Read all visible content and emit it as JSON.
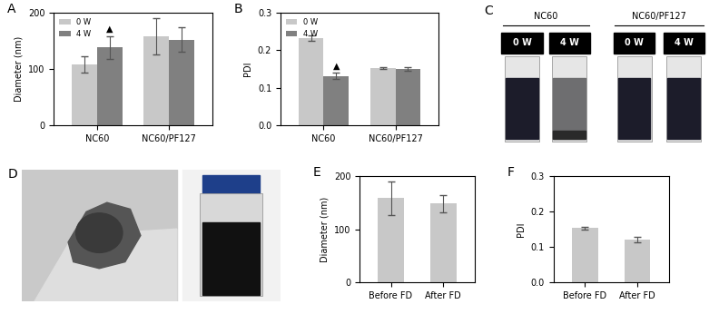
{
  "panel_labels": [
    "A",
    "B",
    "C",
    "D",
    "E",
    "F"
  ],
  "chart_data": [
    {
      "type": "bar",
      "ylabel": "Diameter (nm)",
      "categories": [
        "NC60",
        "NC60/PF127"
      ],
      "series": [
        {
          "name": "0 W",
          "color": "#c8c8c8",
          "values": [
            108,
            158
          ],
          "errors": [
            15,
            32
          ]
        },
        {
          "name": "4 W",
          "color": "#808080",
          "values": [
            138,
            152
          ],
          "errors": [
            20,
            22
          ]
        }
      ],
      "ylim": [
        0,
        200
      ],
      "yticks": [
        0,
        100,
        200
      ],
      "legend": "upper left",
      "annotations": [
        {
          "text": "▲",
          "category": "NC60",
          "series": "4 W"
        }
      ]
    },
    {
      "type": "bar",
      "ylabel": "PDI",
      "categories": [
        "NC60",
        "NC60/PF127"
      ],
      "series": [
        {
          "name": "0 W",
          "color": "#c8c8c8",
          "values": [
            0.232,
            0.153
          ],
          "errors": [
            0.008,
            0.003
          ]
        },
        {
          "name": "4 W",
          "color": "#808080",
          "values": [
            0.132,
            0.15
          ],
          "errors": [
            0.008,
            0.004
          ]
        }
      ],
      "ylim": [
        0,
        0.3
      ],
      "yticks": [
        0.0,
        0.1,
        0.2,
        0.3
      ],
      "legend": "upper left",
      "annotations": [
        {
          "text": "▲",
          "category": "NC60",
          "series": "4 W"
        }
      ]
    },
    {
      "type": "bar",
      "ylabel": "Diameter (nm)",
      "categories": [
        "Before FD",
        "After FD"
      ],
      "values": [
        158,
        148
      ],
      "errors": [
        32,
        16
      ],
      "color": "#c8c8c8",
      "ylim": [
        0,
        200
      ],
      "yticks": [
        0,
        100,
        200
      ]
    },
    {
      "type": "bar",
      "ylabel": "PDI",
      "categories": [
        "Before FD",
        "After FD"
      ],
      "values": [
        0.153,
        0.12
      ],
      "errors": [
        0.003,
        0.008
      ],
      "color": "#c8c8c8",
      "ylim": [
        0,
        0.3
      ],
      "yticks": [
        0.0,
        0.1,
        0.2,
        0.3
      ]
    }
  ],
  "panel_c": {
    "groups": [
      {
        "name": "NC60",
        "conditions": [
          "0 W",
          "4 W"
        ]
      },
      {
        "name": "NC60/PF127",
        "conditions": [
          "0 W",
          "4 W"
        ]
      }
    ]
  }
}
